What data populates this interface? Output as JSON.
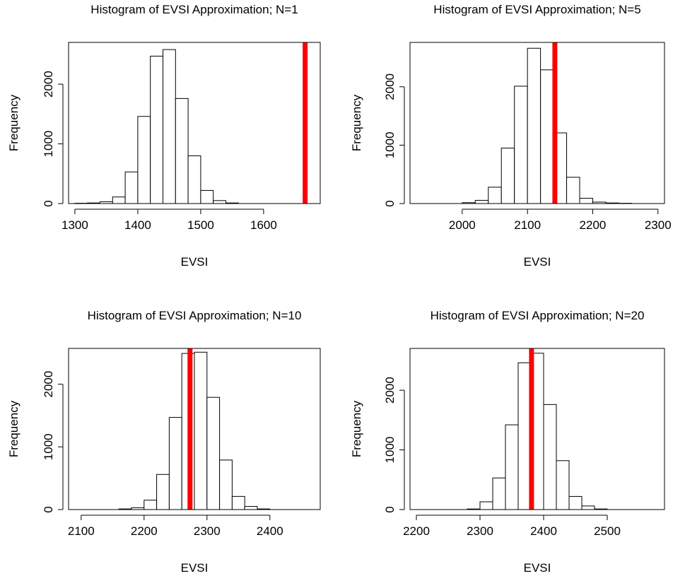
{
  "chart_data": [
    {
      "type": "bar",
      "title": "Histogram of EVSI Approximation; N=1",
      "xlabel": "EVSI",
      "ylabel": "Frequency",
      "xlim": [
        1290,
        1690
      ],
      "ylim": [
        0,
        2700
      ],
      "xticks": [
        1300,
        1400,
        1500,
        1600
      ],
      "yticks": [
        0,
        1000,
        2000
      ],
      "bin_width": 20,
      "bins": [
        {
          "start": 1300,
          "count": 5
        },
        {
          "start": 1320,
          "count": 10
        },
        {
          "start": 1340,
          "count": 30
        },
        {
          "start": 1360,
          "count": 110
        },
        {
          "start": 1380,
          "count": 530
        },
        {
          "start": 1400,
          "count": 1460
        },
        {
          "start": 1420,
          "count": 2470
        },
        {
          "start": 1440,
          "count": 2580
        },
        {
          "start": 1460,
          "count": 1760
        },
        {
          "start": 1480,
          "count": 800
        },
        {
          "start": 1500,
          "count": 220
        },
        {
          "start": 1520,
          "count": 50
        },
        {
          "start": 1540,
          "count": 10
        }
      ],
      "reference_line": {
        "x": 1666,
        "color": "#ff0000"
      }
    },
    {
      "type": "bar",
      "title": "Histogram of EVSI Approximation; N=5",
      "xlabel": "EVSI",
      "ylabel": "Frequency",
      "xlim": [
        1920,
        2310
      ],
      "ylim": [
        0,
        2760
      ],
      "xticks": [
        2000,
        2100,
        2200,
        2300
      ],
      "yticks": [
        0,
        1000,
        2000
      ],
      "bin_width": 20,
      "bins": [
        {
          "start": 2000,
          "count": 15
        },
        {
          "start": 2020,
          "count": 55
        },
        {
          "start": 2040,
          "count": 280
        },
        {
          "start": 2060,
          "count": 950
        },
        {
          "start": 2080,
          "count": 2010
        },
        {
          "start": 2100,
          "count": 2660
        },
        {
          "start": 2120,
          "count": 2290
        },
        {
          "start": 2140,
          "count": 1210
        },
        {
          "start": 2160,
          "count": 450
        },
        {
          "start": 2180,
          "count": 90
        },
        {
          "start": 2200,
          "count": 25
        },
        {
          "start": 2220,
          "count": 10
        },
        {
          "start": 2240,
          "count": 5
        }
      ],
      "reference_line": {
        "x": 2142,
        "color": "#ff0000"
      }
    },
    {
      "type": "bar",
      "title": "Histogram of EVSI Approximation; N=10",
      "xlabel": "EVSI",
      "ylabel": "Frequency",
      "xlim": [
        2080,
        2480
      ],
      "ylim": [
        0,
        2570
      ],
      "xticks": [
        2100,
        2200,
        2300,
        2400
      ],
      "yticks": [
        0,
        1000,
        2000
      ],
      "bin_width": 20,
      "bins": [
        {
          "start": 2160,
          "count": 10
        },
        {
          "start": 2180,
          "count": 30
        },
        {
          "start": 2200,
          "count": 150
        },
        {
          "start": 2220,
          "count": 560
        },
        {
          "start": 2240,
          "count": 1470
        },
        {
          "start": 2260,
          "count": 2490
        },
        {
          "start": 2280,
          "count": 2510
        },
        {
          "start": 2300,
          "count": 1790
        },
        {
          "start": 2320,
          "count": 790
        },
        {
          "start": 2340,
          "count": 210
        },
        {
          "start": 2360,
          "count": 50
        },
        {
          "start": 2380,
          "count": 10
        }
      ],
      "reference_line": {
        "x": 2273,
        "color": "#ff0000"
      }
    },
    {
      "type": "bar",
      "title": "Histogram of EVSI Approximation; N=20",
      "xlabel": "EVSI",
      "ylabel": "Frequency",
      "xlim": [
        2190,
        2590
      ],
      "ylim": [
        0,
        2700
      ],
      "xticks": [
        2200,
        2300,
        2400,
        2500
      ],
      "yticks": [
        0,
        1000,
        2000
      ],
      "bin_width": 20,
      "bins": [
        {
          "start": 2280,
          "count": 10
        },
        {
          "start": 2300,
          "count": 130
        },
        {
          "start": 2320,
          "count": 530
        },
        {
          "start": 2340,
          "count": 1420
        },
        {
          "start": 2360,
          "count": 2460
        },
        {
          "start": 2380,
          "count": 2620
        },
        {
          "start": 2400,
          "count": 1760
        },
        {
          "start": 2420,
          "count": 820
        },
        {
          "start": 2440,
          "count": 220
        },
        {
          "start": 2460,
          "count": 60
        },
        {
          "start": 2480,
          "count": 10
        }
      ],
      "reference_line": {
        "x": 2381,
        "color": "#ff0000"
      }
    }
  ]
}
